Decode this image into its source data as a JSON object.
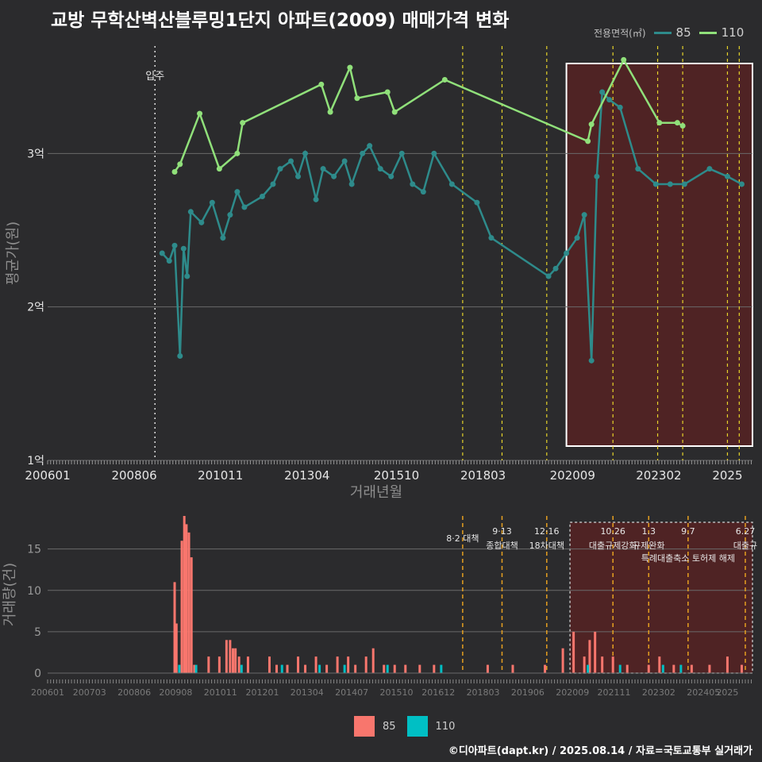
{
  "title": "교방 무학산벽산블루밍1단지 아파트(2009) 매매가격 변화",
  "legend": {
    "title": "전용면적(㎡)",
    "series": [
      {
        "label": "85",
        "color": "#2e8b8b"
      },
      {
        "label": "110",
        "color": "#90e07a"
      }
    ]
  },
  "footer": "©디아파트(dapt.kr) / 2025.08.14 / 자료=국토교통부 실거래가",
  "chart_data": [
    {
      "type": "line",
      "title": "교방 무학산벽산블루밍1단지 아파트(2009) 매매가격 변화",
      "xlabel": "거래년월",
      "ylabel": "평균가(원)",
      "xlim": [
        2006.0,
        2025.7
      ],
      "ylim": [
        1.0,
        3.7
      ],
      "x_ticks": [
        "200601",
        "200806",
        "201011",
        "201304",
        "201510",
        "201803",
        "202009",
        "202302",
        "2025"
      ],
      "y_ticks": [
        "1억",
        "2억",
        "3억"
      ],
      "annotation_movein": {
        "x": 2009.0,
        "label": "입주"
      },
      "policy_lines": [
        2017.6,
        2018.7,
        2019.95,
        2021.8,
        2023.05,
        2023.75,
        2025.0,
        2025.33
      ],
      "highlight_range": [
        2020.5,
        2025.7
      ],
      "series": [
        {
          "name": "110",
          "color": "#90e07a",
          "x": [
            2009.55,
            2009.7,
            2010.25,
            2010.8,
            2011.3,
            2011.45,
            2013.65,
            2013.9,
            2014.45,
            2014.65,
            2015.5,
            2015.7,
            2017.1,
            2021.1,
            2021.2,
            2022.1,
            2023.1,
            2023.6,
            2023.75
          ],
          "y": [
            2.88,
            2.93,
            3.26,
            2.9,
            3.0,
            3.2,
            3.45,
            3.27,
            3.56,
            3.36,
            3.4,
            3.27,
            3.48,
            3.08,
            3.19,
            3.61,
            3.2,
            3.2,
            3.18
          ]
        },
        {
          "name": "85",
          "color": "#2e8b8b",
          "x": [
            2009.2,
            2009.4,
            2009.55,
            2009.7,
            2009.8,
            2009.9,
            2010.0,
            2010.3,
            2010.6,
            2010.9,
            2011.1,
            2011.3,
            2011.5,
            2012.0,
            2012.3,
            2012.5,
            2012.8,
            2013.0,
            2013.2,
            2013.5,
            2013.7,
            2014.0,
            2014.3,
            2014.5,
            2014.8,
            2015.0,
            2015.3,
            2015.6,
            2015.9,
            2016.2,
            2016.5,
            2016.8,
            2017.3,
            2018.0,
            2018.4,
            2020.0,
            2020.2,
            2020.5,
            2020.8,
            2021.0,
            2021.2,
            2021.35,
            2021.5,
            2021.7,
            2022.0,
            2022.5,
            2023.0,
            2023.4,
            2023.8,
            2024.5,
            2025.0,
            2025.4
          ],
          "y": [
            2.35,
            2.3,
            2.4,
            1.68,
            2.38,
            2.2,
            2.62,
            2.55,
            2.68,
            2.45,
            2.6,
            2.75,
            2.65,
            2.72,
            2.8,
            2.9,
            2.95,
            2.85,
            3.0,
            2.7,
            2.9,
            2.85,
            2.95,
            2.8,
            3.0,
            3.05,
            2.9,
            2.85,
            3.0,
            2.8,
            2.75,
            3.0,
            2.8,
            2.68,
            2.45,
            2.2,
            2.25,
            2.35,
            2.45,
            2.6,
            1.65,
            2.85,
            3.4,
            3.35,
            3.3,
            2.9,
            2.8,
            2.8,
            2.8,
            2.9,
            2.85,
            2.8
          ]
        }
      ]
    },
    {
      "type": "bar",
      "xlabel": "",
      "ylabel": "거래량(건)",
      "xlim": [
        2006.0,
        2025.7
      ],
      "ylim": [
        0,
        19
      ],
      "y_ticks": [
        "0",
        "5",
        "10",
        "15"
      ],
      "x_ticks": [
        "200601",
        "200703",
        "200806",
        "200908",
        "201011",
        "201201",
        "201304",
        "201407",
        "201510",
        "201612",
        "201803",
        "201906",
        "202009",
        "202111",
        "202302",
        "202405",
        "2025"
      ],
      "policy_labels": [
        {
          "x": 2017.6,
          "date": "",
          "name": "8·2 대책"
        },
        {
          "x": 2018.7,
          "date": "9·13",
          "name": "종합대책"
        },
        {
          "x": 2019.95,
          "date": "12·16",
          "name": "18차대책"
        },
        {
          "x": 2021.8,
          "date": "10.26",
          "name": "대출규제강화"
        },
        {
          "x": 2022.8,
          "date": "1.3",
          "name": "규제완화"
        },
        {
          "x": 2023.9,
          "date": "9.7",
          "name": "특례대출축소 토허제 해제"
        },
        {
          "x": 2025.5,
          "date": "6.27",
          "name": "대출규"
        }
      ],
      "series": [
        {
          "name": "85",
          "color": "#f8766d",
          "x": [
            2009.55,
            2009.6,
            2009.75,
            2009.82,
            2009.88,
            2009.95,
            2010.02,
            2010.1,
            2010.5,
            2010.8,
            2011.0,
            2011.1,
            2011.18,
            2011.25,
            2011.35,
            2011.6,
            2012.2,
            2012.4,
            2012.7,
            2013.0,
            2013.2,
            2013.5,
            2013.8,
            2014.1,
            2014.4,
            2014.6,
            2014.9,
            2015.1,
            2015.4,
            2015.7,
            2016.0,
            2016.4,
            2016.8,
            2018.3,
            2019.0,
            2019.9,
            2020.4,
            2020.7,
            2021.0,
            2021.15,
            2021.3,
            2021.5,
            2021.8,
            2022.2,
            2022.8,
            2023.1,
            2023.5,
            2024.0,
            2024.5,
            2025.0,
            2025.4
          ],
          "y": [
            11,
            6,
            16,
            19,
            18,
            17,
            14,
            1,
            2,
            2,
            4,
            4,
            3,
            3,
            2,
            2,
            2,
            1,
            1,
            2,
            1,
            2,
            1,
            2,
            2,
            1,
            2,
            3,
            1,
            1,
            1,
            1,
            1,
            1,
            1,
            1,
            3,
            5,
            2,
            4,
            5,
            2,
            2,
            1,
            1,
            2,
            1,
            1,
            1,
            2,
            1
          ]
        },
        {
          "name": "110",
          "color": "#00bfc4",
          "x": [
            2009.68,
            2010.15,
            2011.42,
            2012.55,
            2013.6,
            2014.3,
            2015.5,
            2017.0,
            2021.1,
            2022.0,
            2023.2,
            2023.7
          ],
          "y": [
            1,
            1,
            1,
            1,
            1,
            1,
            1,
            1,
            1,
            1,
            1,
            1
          ]
        }
      ]
    }
  ]
}
